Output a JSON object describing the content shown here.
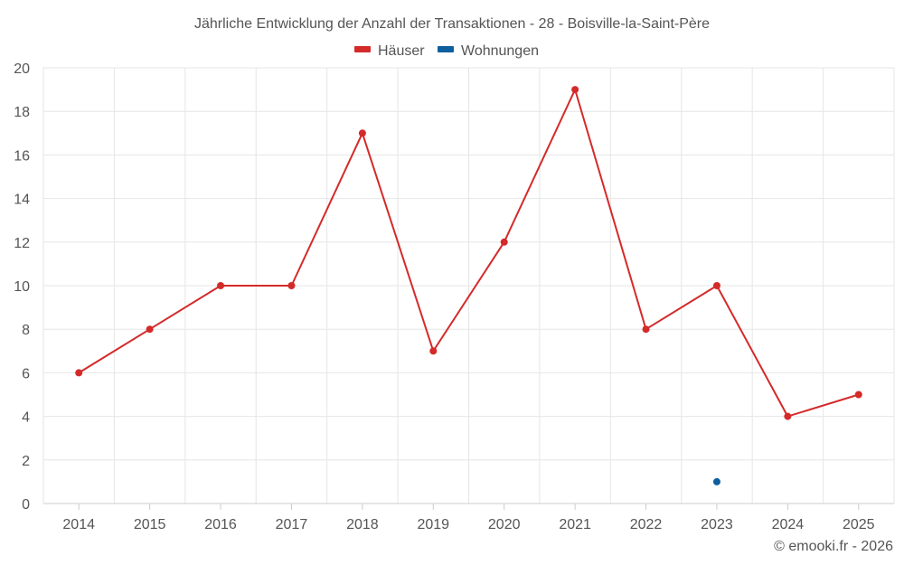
{
  "chart_data": {
    "type": "line",
    "title": "Jährliche Entwicklung der Anzahl der Transaktionen - 28 - Boisville-la-Saint-Père",
    "categories": [
      "2014",
      "2015",
      "2016",
      "2017",
      "2018",
      "2019",
      "2020",
      "2021",
      "2022",
      "2023",
      "2024",
      "2025"
    ],
    "series": [
      {
        "name": "Häuser",
        "color": "#d42a2a",
        "values": [
          6,
          8,
          10,
          10,
          17,
          7,
          12,
          19,
          8,
          10,
          4,
          5
        ]
      },
      {
        "name": "Wohnungen",
        "color": "#0d5f9e",
        "values": [
          null,
          null,
          null,
          null,
          null,
          null,
          null,
          null,
          null,
          1,
          null,
          null
        ]
      }
    ],
    "ylim": [
      0,
      20
    ],
    "yticks": [
      "0",
      "2",
      "4",
      "6",
      "8",
      "10",
      "12",
      "14",
      "16",
      "18",
      "20"
    ],
    "grid": true,
    "legend_position": "top-center",
    "xlabel": "",
    "ylabel": ""
  },
  "credit": "© emooki.fr - 2026"
}
